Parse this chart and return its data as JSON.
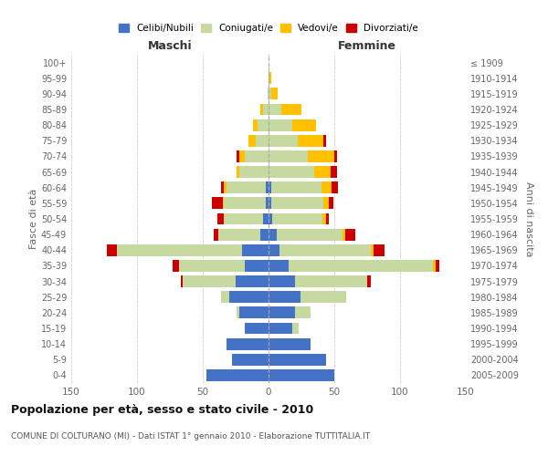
{
  "age_groups": [
    "0-4",
    "5-9",
    "10-14",
    "15-19",
    "20-24",
    "25-29",
    "30-34",
    "35-39",
    "40-44",
    "45-49",
    "50-54",
    "55-59",
    "60-64",
    "65-69",
    "70-74",
    "75-79",
    "80-84",
    "85-89",
    "90-94",
    "95-99",
    "100+"
  ],
  "birth_years": [
    "2005-2009",
    "2000-2004",
    "1995-1999",
    "1990-1994",
    "1985-1989",
    "1980-1984",
    "1975-1979",
    "1970-1974",
    "1965-1969",
    "1960-1964",
    "1955-1959",
    "1950-1954",
    "1945-1949",
    "1940-1944",
    "1935-1939",
    "1930-1934",
    "1925-1929",
    "1920-1924",
    "1915-1919",
    "1910-1914",
    "≤ 1909"
  ],
  "males_celibi": [
    47,
    28,
    32,
    18,
    22,
    30,
    25,
    18,
    20,
    6,
    4,
    2,
    2,
    0,
    0,
    0,
    0,
    0,
    0,
    0,
    0
  ],
  "males_coniugati": [
    0,
    0,
    0,
    0,
    2,
    6,
    40,
    50,
    95,
    32,
    30,
    32,
    30,
    22,
    18,
    10,
    8,
    4,
    1,
    0,
    0
  ],
  "males_vedovi": [
    0,
    0,
    0,
    0,
    0,
    0,
    0,
    0,
    0,
    0,
    0,
    1,
    2,
    2,
    4,
    5,
    4,
    2,
    0,
    0,
    0
  ],
  "males_divorziati": [
    0,
    0,
    0,
    0,
    0,
    0,
    2,
    5,
    8,
    4,
    5,
    8,
    2,
    0,
    2,
    0,
    0,
    0,
    0,
    0,
    0
  ],
  "females_nubili": [
    50,
    44,
    32,
    18,
    20,
    24,
    20,
    15,
    8,
    6,
    3,
    2,
    2,
    0,
    0,
    0,
    0,
    0,
    0,
    0,
    0
  ],
  "females_coniugate": [
    0,
    0,
    0,
    5,
    12,
    35,
    55,
    110,
    70,
    50,
    38,
    40,
    38,
    35,
    30,
    22,
    18,
    10,
    2,
    0,
    0
  ],
  "females_vedove": [
    0,
    0,
    0,
    0,
    0,
    0,
    0,
    2,
    2,
    2,
    3,
    4,
    8,
    12,
    20,
    20,
    18,
    15,
    5,
    2,
    0
  ],
  "females_divorziate": [
    0,
    0,
    0,
    0,
    0,
    0,
    3,
    3,
    8,
    8,
    2,
    3,
    5,
    5,
    2,
    2,
    0,
    0,
    0,
    0,
    0
  ],
  "color_celibi": "#4472c4",
  "color_coniugati": "#c5d9a0",
  "color_vedovi": "#ffc000",
  "color_divorziati": "#cc0000",
  "title": "Popolazione per età, sesso e stato civile - 2010",
  "subtitle": "COMUNE DI COLTURANO (MI) - Dati ISTAT 1° gennaio 2010 - Elaborazione TUTTITALIA.IT",
  "label_maschi": "Maschi",
  "label_femmine": "Femmine",
  "ylabel_left": "Fasce di età",
  "ylabel_right": "Anni di nascita",
  "legend_labels": [
    "Celibi/Nubili",
    "Coniugati/e",
    "Vedovi/e",
    "Divorziati/e"
  ],
  "xlim": 150,
  "bg_color": "#ffffff",
  "grid_color": "#cccccc"
}
